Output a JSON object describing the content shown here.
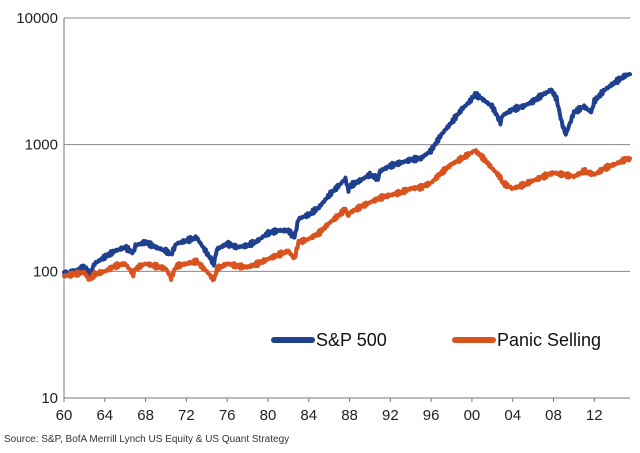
{
  "chart_data": {
    "type": "line",
    "title": "",
    "xlabel": "",
    "ylabel": "",
    "y_scale": "log",
    "ylim": [
      10,
      10000
    ],
    "xlim": [
      1960,
      2015.5
    ],
    "y_ticks": [
      {
        "value": 10,
        "label": "10"
      },
      {
        "value": 100,
        "label": "100"
      },
      {
        "value": 1000,
        "label": "1000"
      },
      {
        "value": 10000,
        "label": "10000"
      }
    ],
    "x_ticks": [
      {
        "value": 1960,
        "label": "60"
      },
      {
        "value": 1964,
        "label": "64"
      },
      {
        "value": 1968,
        "label": "68"
      },
      {
        "value": 1972,
        "label": "72"
      },
      {
        "value": 1976,
        "label": "76"
      },
      {
        "value": 1980,
        "label": "80"
      },
      {
        "value": 1984,
        "label": "84"
      },
      {
        "value": 1988,
        "label": "88"
      },
      {
        "value": 1992,
        "label": "92"
      },
      {
        "value": 1996,
        "label": "96"
      },
      {
        "value": 2000,
        "label": "00"
      },
      {
        "value": 2004,
        "label": "04"
      },
      {
        "value": 2008,
        "label": "08"
      },
      {
        "value": 2012,
        "label": "12"
      }
    ],
    "gridlines": [
      100,
      1000,
      10000
    ],
    "legend_position": "bottom-right",
    "series": [
      {
        "name": "S&P 500",
        "color": "#1f3f8f",
        "x": [
          1960,
          1961,
          1962,
          1962.5,
          1963,
          1964,
          1965,
          1966,
          1966.8,
          1967,
          1968,
          1969,
          1970,
          1970.5,
          1971,
          1972,
          1973,
          1974,
          1974.7,
          1975,
          1976,
          1977,
          1978,
          1979,
          1980,
          1981,
          1982,
          1982.6,
          1983,
          1984,
          1985,
          1986,
          1987,
          1987.6,
          1987.9,
          1988,
          1989,
          1990,
          1990.8,
          1991,
          1992,
          1993,
          1994,
          1995,
          1996,
          1997,
          1998,
          1999,
          1999.8,
          2000.3,
          2001,
          2002,
          2002.8,
          2003,
          2004,
          2005,
          2006,
          2007,
          2007.8,
          2008.3,
          2008.8,
          2009.2,
          2010,
          2011,
          2011.7,
          2012,
          2013,
          2014,
          2015,
          2015.5
        ],
        "values": [
          95,
          100,
          110,
          95,
          115,
          130,
          145,
          155,
          140,
          160,
          170,
          155,
          145,
          135,
          165,
          175,
          185,
          140,
          115,
          150,
          165,
          155,
          160,
          175,
          200,
          210,
          210,
          185,
          260,
          280,
          320,
          400,
          480,
          540,
          430,
          470,
          520,
          580,
          540,
          620,
          680,
          720,
          760,
          780,
          900,
          1200,
          1500,
          1900,
          2200,
          2500,
          2300,
          2000,
          1500,
          1700,
          1900,
          2000,
          2200,
          2500,
          2700,
          2300,
          1500,
          1200,
          1800,
          2000,
          1800,
          2200,
          2700,
          3100,
          3500,
          3600
        ]
      },
      {
        "name": "Panic Selling",
        "color": "#d9531e",
        "x": [
          1960,
          1961,
          1962,
          1962.5,
          1963,
          1964,
          1965,
          1966,
          1966.8,
          1967,
          1968,
          1969,
          1970,
          1970.5,
          1971,
          1972,
          1973,
          1974,
          1974.7,
          1975,
          1976,
          1977,
          1978,
          1979,
          1980,
          1981,
          1982,
          1982.6,
          1983,
          1984,
          1985,
          1986,
          1987,
          1987.6,
          1987.9,
          1988,
          1989,
          1990,
          1991,
          1992,
          1993,
          1994,
          1995,
          1996,
          1997,
          1998,
          1999,
          1999.8,
          2000.3,
          2001,
          2002,
          2002.8,
          2003,
          2004,
          2005,
          2006,
          2007,
          2008,
          2009,
          2010,
          2011,
          2012,
          2013,
          2014,
          2015,
          2015.5
        ],
        "values": [
          92,
          95,
          98,
          85,
          95,
          100,
          110,
          115,
          95,
          105,
          115,
          110,
          105,
          88,
          110,
          115,
          120,
          100,
          85,
          105,
          115,
          110,
          108,
          115,
          125,
          135,
          145,
          125,
          170,
          180,
          200,
          240,
          280,
          310,
          270,
          290,
          320,
          350,
          380,
          400,
          420,
          450,
          460,
          500,
          600,
          700,
          780,
          850,
          900,
          800,
          650,
          550,
          500,
          450,
          480,
          520,
          560,
          600,
          580,
          560,
          620,
          580,
          650,
          700,
          760,
          780
        ]
      }
    ]
  },
  "source_text": "Source: S&P, BofA Merrill Lynch US Equity & US Quant Strategy"
}
